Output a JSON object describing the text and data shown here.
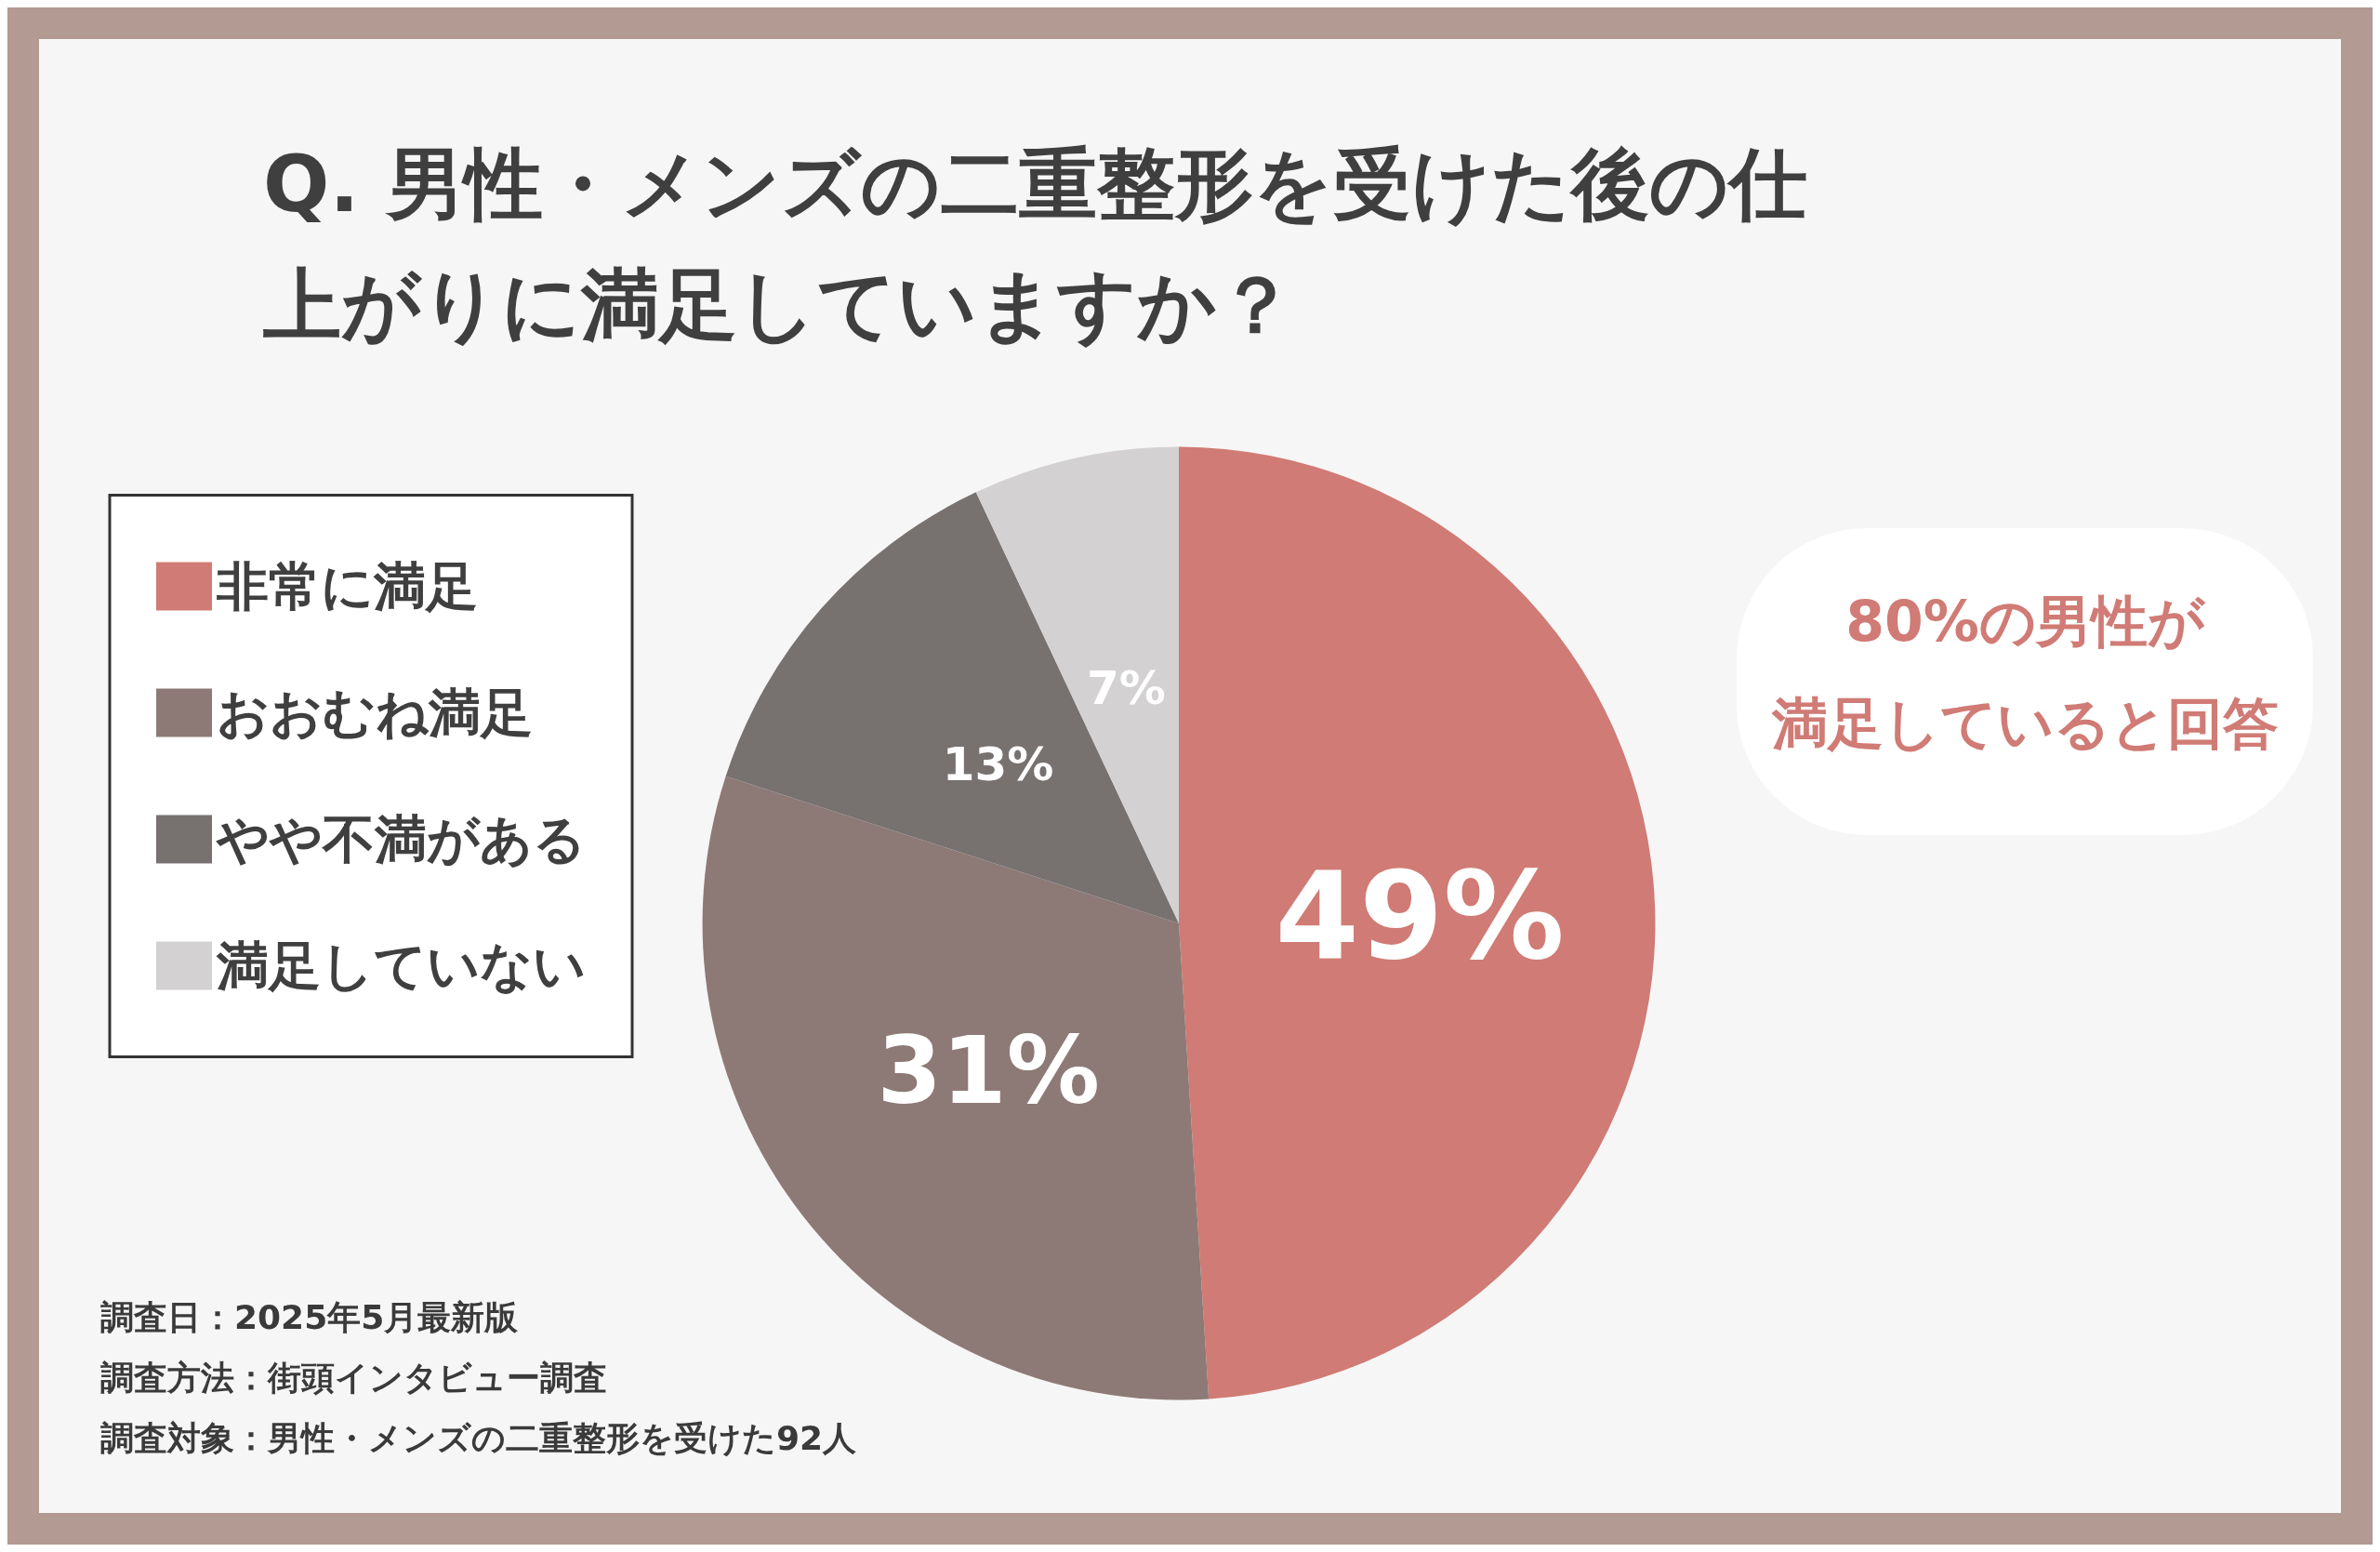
{
  "chart_data": {
    "type": "pie",
    "title": "Q. 男性・メンズの二重整形を受けた後の仕上がりに満足していますか？",
    "categories": [
      "非常に満足",
      "おおむね満足",
      "やや不満がある",
      "満足していない"
    ],
    "values": [
      49,
      31,
      13,
      7
    ],
    "colors": [
      "#d07b75",
      "#8d7a76",
      "#777170",
      "#d3d1d1"
    ],
    "value_labels": [
      "49%",
      "31%",
      "13%",
      "7%"
    ],
    "legend": "left",
    "annotations": [
      "80%の男性が",
      "満足していると回答",
      "調査日：2025年5月最新版",
      "調査方法：街頭インタビュー調査",
      "調査対象：男性・メンズの二重整形を受けた92人"
    ]
  }
}
